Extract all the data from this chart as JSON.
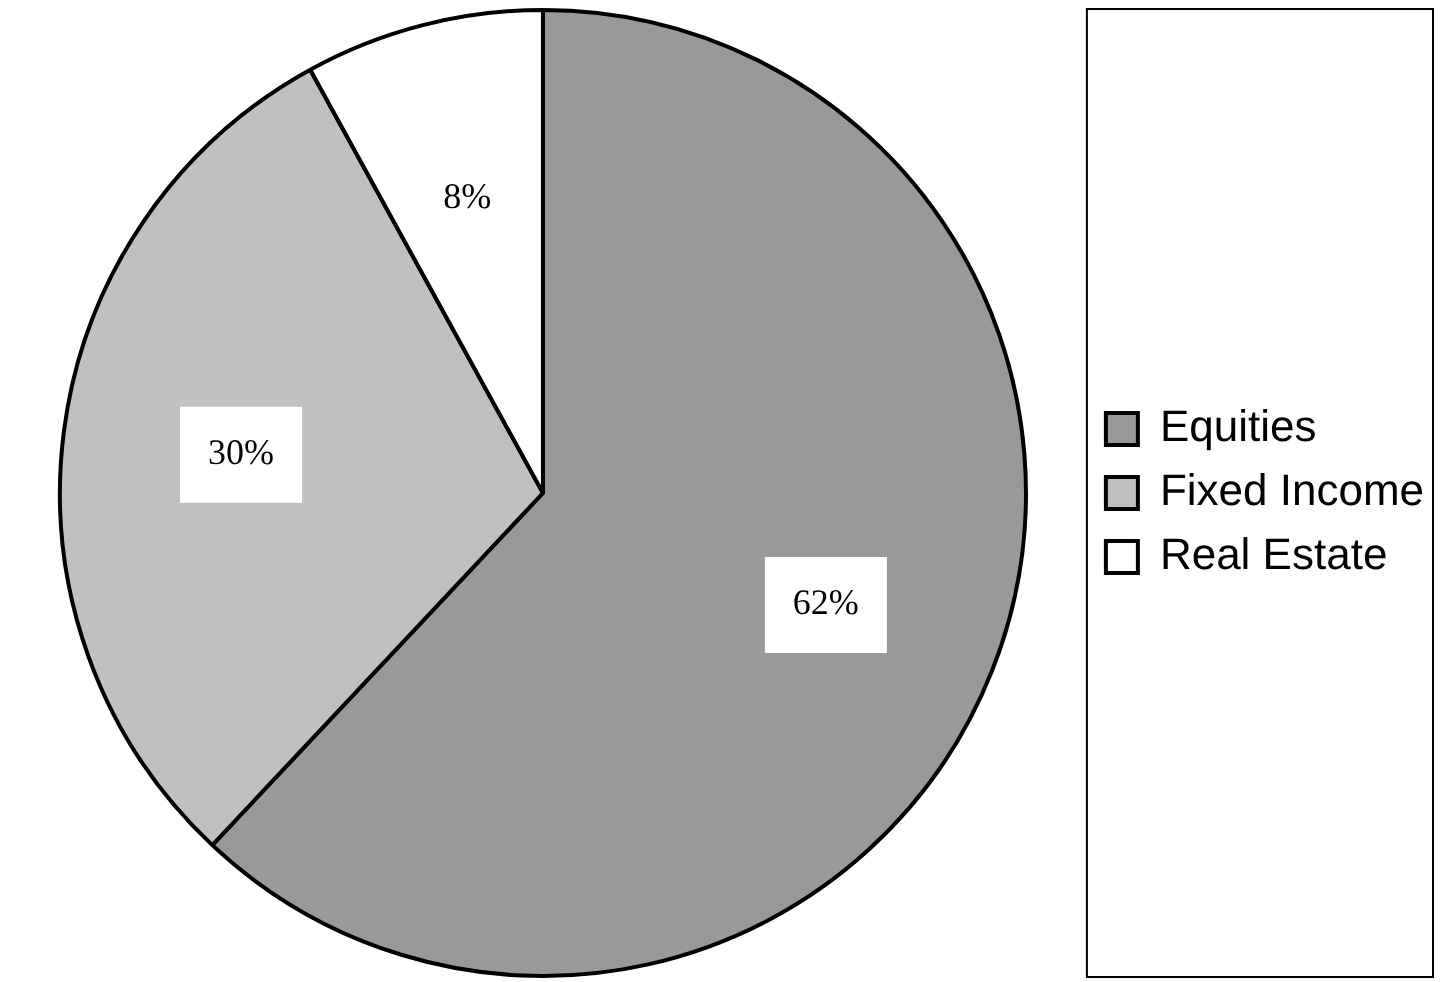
{
  "chart_data": {
    "type": "pie",
    "categories": [
      "Equities",
      "Fixed Income",
      "Real Estate"
    ],
    "values": [
      62,
      30,
      8
    ],
    "colors": [
      "#999999",
      "#c0c0c0",
      "#ffffff"
    ],
    "value_labels": [
      "62%",
      "30%",
      "8%"
    ],
    "legend": "right"
  }
}
